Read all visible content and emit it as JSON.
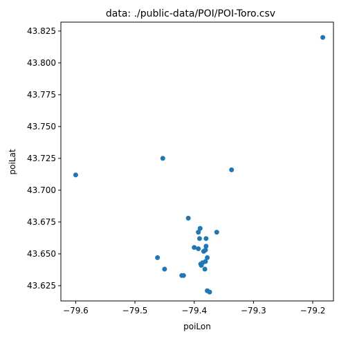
{
  "chart_data": {
    "type": "scatter",
    "title": "data: ./public-data/POI/POI-Toro.csv",
    "xlabel": "poiLon",
    "ylabel": "poiLat",
    "xlim": [
      -79.625,
      -79.165
    ],
    "ylim": [
      43.613,
      43.832
    ],
    "x_ticks": [
      -79.6,
      -79.5,
      -79.4,
      -79.3,
      -79.2
    ],
    "x_tick_labels": [
      "−79.6",
      "−79.5",
      "−79.4",
      "−79.3",
      "−79.2"
    ],
    "y_ticks": [
      43.625,
      43.65,
      43.675,
      43.7,
      43.725,
      43.75,
      43.775,
      43.8,
      43.825
    ],
    "y_tick_labels": [
      "43.625",
      "43.650",
      "43.675",
      "43.700",
      "43.725",
      "43.750",
      "43.775",
      "43.800",
      "43.825"
    ],
    "grid": false,
    "marker_color": "#1f77b4",
    "points": [
      {
        "x": -79.6,
        "y": 43.712
      },
      {
        "x": -79.453,
        "y": 43.725
      },
      {
        "x": -79.337,
        "y": 43.716
      },
      {
        "x": -79.183,
        "y": 43.82
      },
      {
        "x": -79.41,
        "y": 43.678
      },
      {
        "x": -79.39,
        "y": 43.67
      },
      {
        "x": -79.362,
        "y": 43.667
      },
      {
        "x": -79.393,
        "y": 43.667
      },
      {
        "x": -79.391,
        "y": 43.662
      },
      {
        "x": -79.38,
        "y": 43.662
      },
      {
        "x": -79.38,
        "y": 43.656
      },
      {
        "x": -79.4,
        "y": 43.655
      },
      {
        "x": -79.393,
        "y": 43.654
      },
      {
        "x": -79.381,
        "y": 43.653
      },
      {
        "x": -79.384,
        "y": 43.652
      },
      {
        "x": -79.462,
        "y": 43.647
      },
      {
        "x": -79.378,
        "y": 43.647
      },
      {
        "x": -79.381,
        "y": 43.644
      },
      {
        "x": -79.386,
        "y": 43.643
      },
      {
        "x": -79.389,
        "y": 43.642
      },
      {
        "x": -79.388,
        "y": 43.641
      },
      {
        "x": -79.45,
        "y": 43.638
      },
      {
        "x": -79.382,
        "y": 43.638
      },
      {
        "x": -79.421,
        "y": 43.633
      },
      {
        "x": -79.418,
        "y": 43.633
      },
      {
        "x": -79.378,
        "y": 43.621
      },
      {
        "x": -79.374,
        "y": 43.62
      }
    ]
  }
}
